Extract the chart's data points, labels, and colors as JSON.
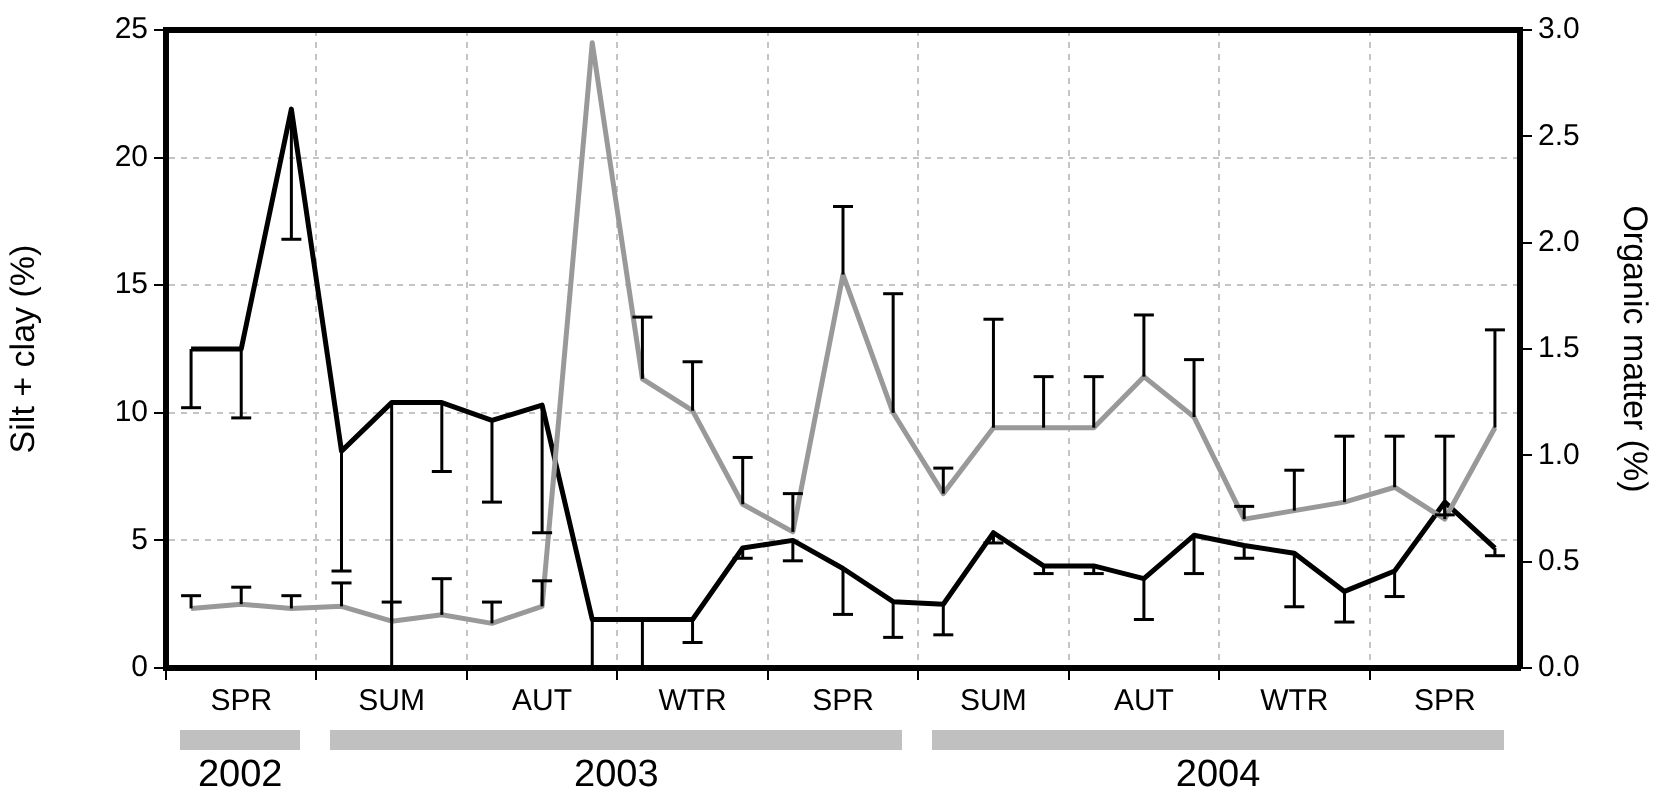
{
  "chart_data": {
    "type": "line",
    "categories": [
      null,
      "SPR",
      null,
      null,
      "SUM",
      null,
      null,
      "AUT",
      null,
      null,
      "WTR",
      null,
      null,
      "SPR",
      null,
      null,
      "SUM",
      null,
      null,
      "AUT",
      null,
      null,
      "WTR",
      null,
      null,
      "SPR",
      null
    ],
    "ylabel": "Silt + clay (%)",
    "y2label": "Organic matter (%)",
    "ylim": [
      0,
      25
    ],
    "yticks": [
      0,
      5,
      10,
      15,
      20,
      25
    ],
    "y2lim": [
      0,
      3
    ],
    "y2ticks": [
      {
        "value": 0,
        "label": "0.0"
      },
      0.5,
      {
        "value": 1,
        "label": "1.0"
      },
      1.5,
      {
        "value": 2,
        "label": "2.0"
      },
      2.5,
      {
        "value": 3,
        "label": "3.0"
      }
    ],
    "grid": true,
    "legend": false,
    "marker": "none",
    "line_style": "solid",
    "annotations": [
      "2002",
      "2003",
      "2004"
    ],
    "series": [
      {
        "color": "#999999",
        "axis": "y2",
        "values": [
          0.28,
          0.3,
          0.28,
          0.29,
          0.22,
          0.25,
          0.21,
          0.29,
          2.94,
          1.36,
          1.21,
          0.77,
          0.64,
          1.85,
          1.2,
          0.82,
          1.13,
          1.13,
          1.13,
          1.37,
          1.18,
          0.7,
          0.74,
          0.78,
          0.85,
          0.7,
          1.13
        ],
        "errors": [
          [
            0.28,
            0.34
          ],
          [
            0.3,
            0.38
          ],
          [
            0.28,
            0.34
          ],
          [
            0.29,
            0.4
          ],
          [
            0.22,
            0.31
          ],
          [
            0.25,
            0.42
          ],
          [
            0.21,
            0.31
          ],
          [
            0.29,
            0.41
          ],
          null,
          [
            1.36,
            1.65
          ],
          [
            1.21,
            1.44
          ],
          [
            0.77,
            0.99
          ],
          [
            0.64,
            0.82
          ],
          [
            1.85,
            2.17
          ],
          [
            1.2,
            1.76
          ],
          [
            0.82,
            0.94
          ],
          [
            1.13,
            1.64
          ],
          [
            1.13,
            1.37
          ],
          [
            1.13,
            1.37
          ],
          [
            1.37,
            1.66
          ],
          [
            1.18,
            1.45
          ],
          [
            0.7,
            0.76
          ],
          [
            0.74,
            0.93
          ],
          [
            0.78,
            1.09
          ],
          [
            0.85,
            1.09
          ],
          [
            0.7,
            1.09
          ],
          [
            1.13,
            1.59
          ]
        ]
      },
      {
        "color": "#000000",
        "axis": "y",
        "values": [
          12.5,
          12.5,
          21.9,
          8.5,
          10.4,
          10.4,
          9.7,
          10.3,
          1.9,
          1.9,
          1.9,
          4.7,
          5.0,
          3.9,
          2.6,
          2.5,
          5.3,
          4.0,
          4.0,
          3.5,
          5.2,
          4.8,
          4.5,
          3.0,
          3.8,
          6.5,
          4.7
        ],
        "errors": [
          [
            10.2,
            12.5
          ],
          [
            9.8,
            12.5
          ],
          [
            16.8,
            21.9
          ],
          [
            3.8,
            8.5
          ],
          [
            0,
            10.4
          ],
          [
            7.7,
            10.4
          ],
          [
            6.5,
            9.7
          ],
          [
            5.3,
            10.3
          ],
          [
            0,
            1.9
          ],
          [
            0,
            1.9
          ],
          [
            1.0,
            1.9
          ],
          [
            4.3,
            4.7
          ],
          [
            4.2,
            5.0
          ],
          [
            2.1,
            3.9
          ],
          [
            1.2,
            2.6
          ],
          [
            1.3,
            2.5
          ],
          [
            4.9,
            5.3
          ],
          [
            3.7,
            4.0
          ],
          [
            3.7,
            4.0
          ],
          [
            1.9,
            3.5
          ],
          [
            3.7,
            5.2
          ],
          [
            4.3,
            4.8
          ],
          [
            2.4,
            4.5
          ],
          [
            1.8,
            3.0
          ],
          [
            2.8,
            3.8
          ],
          [
            6.0,
            6.5
          ],
          [
            4.4,
            4.7
          ]
        ]
      }
    ]
  }
}
